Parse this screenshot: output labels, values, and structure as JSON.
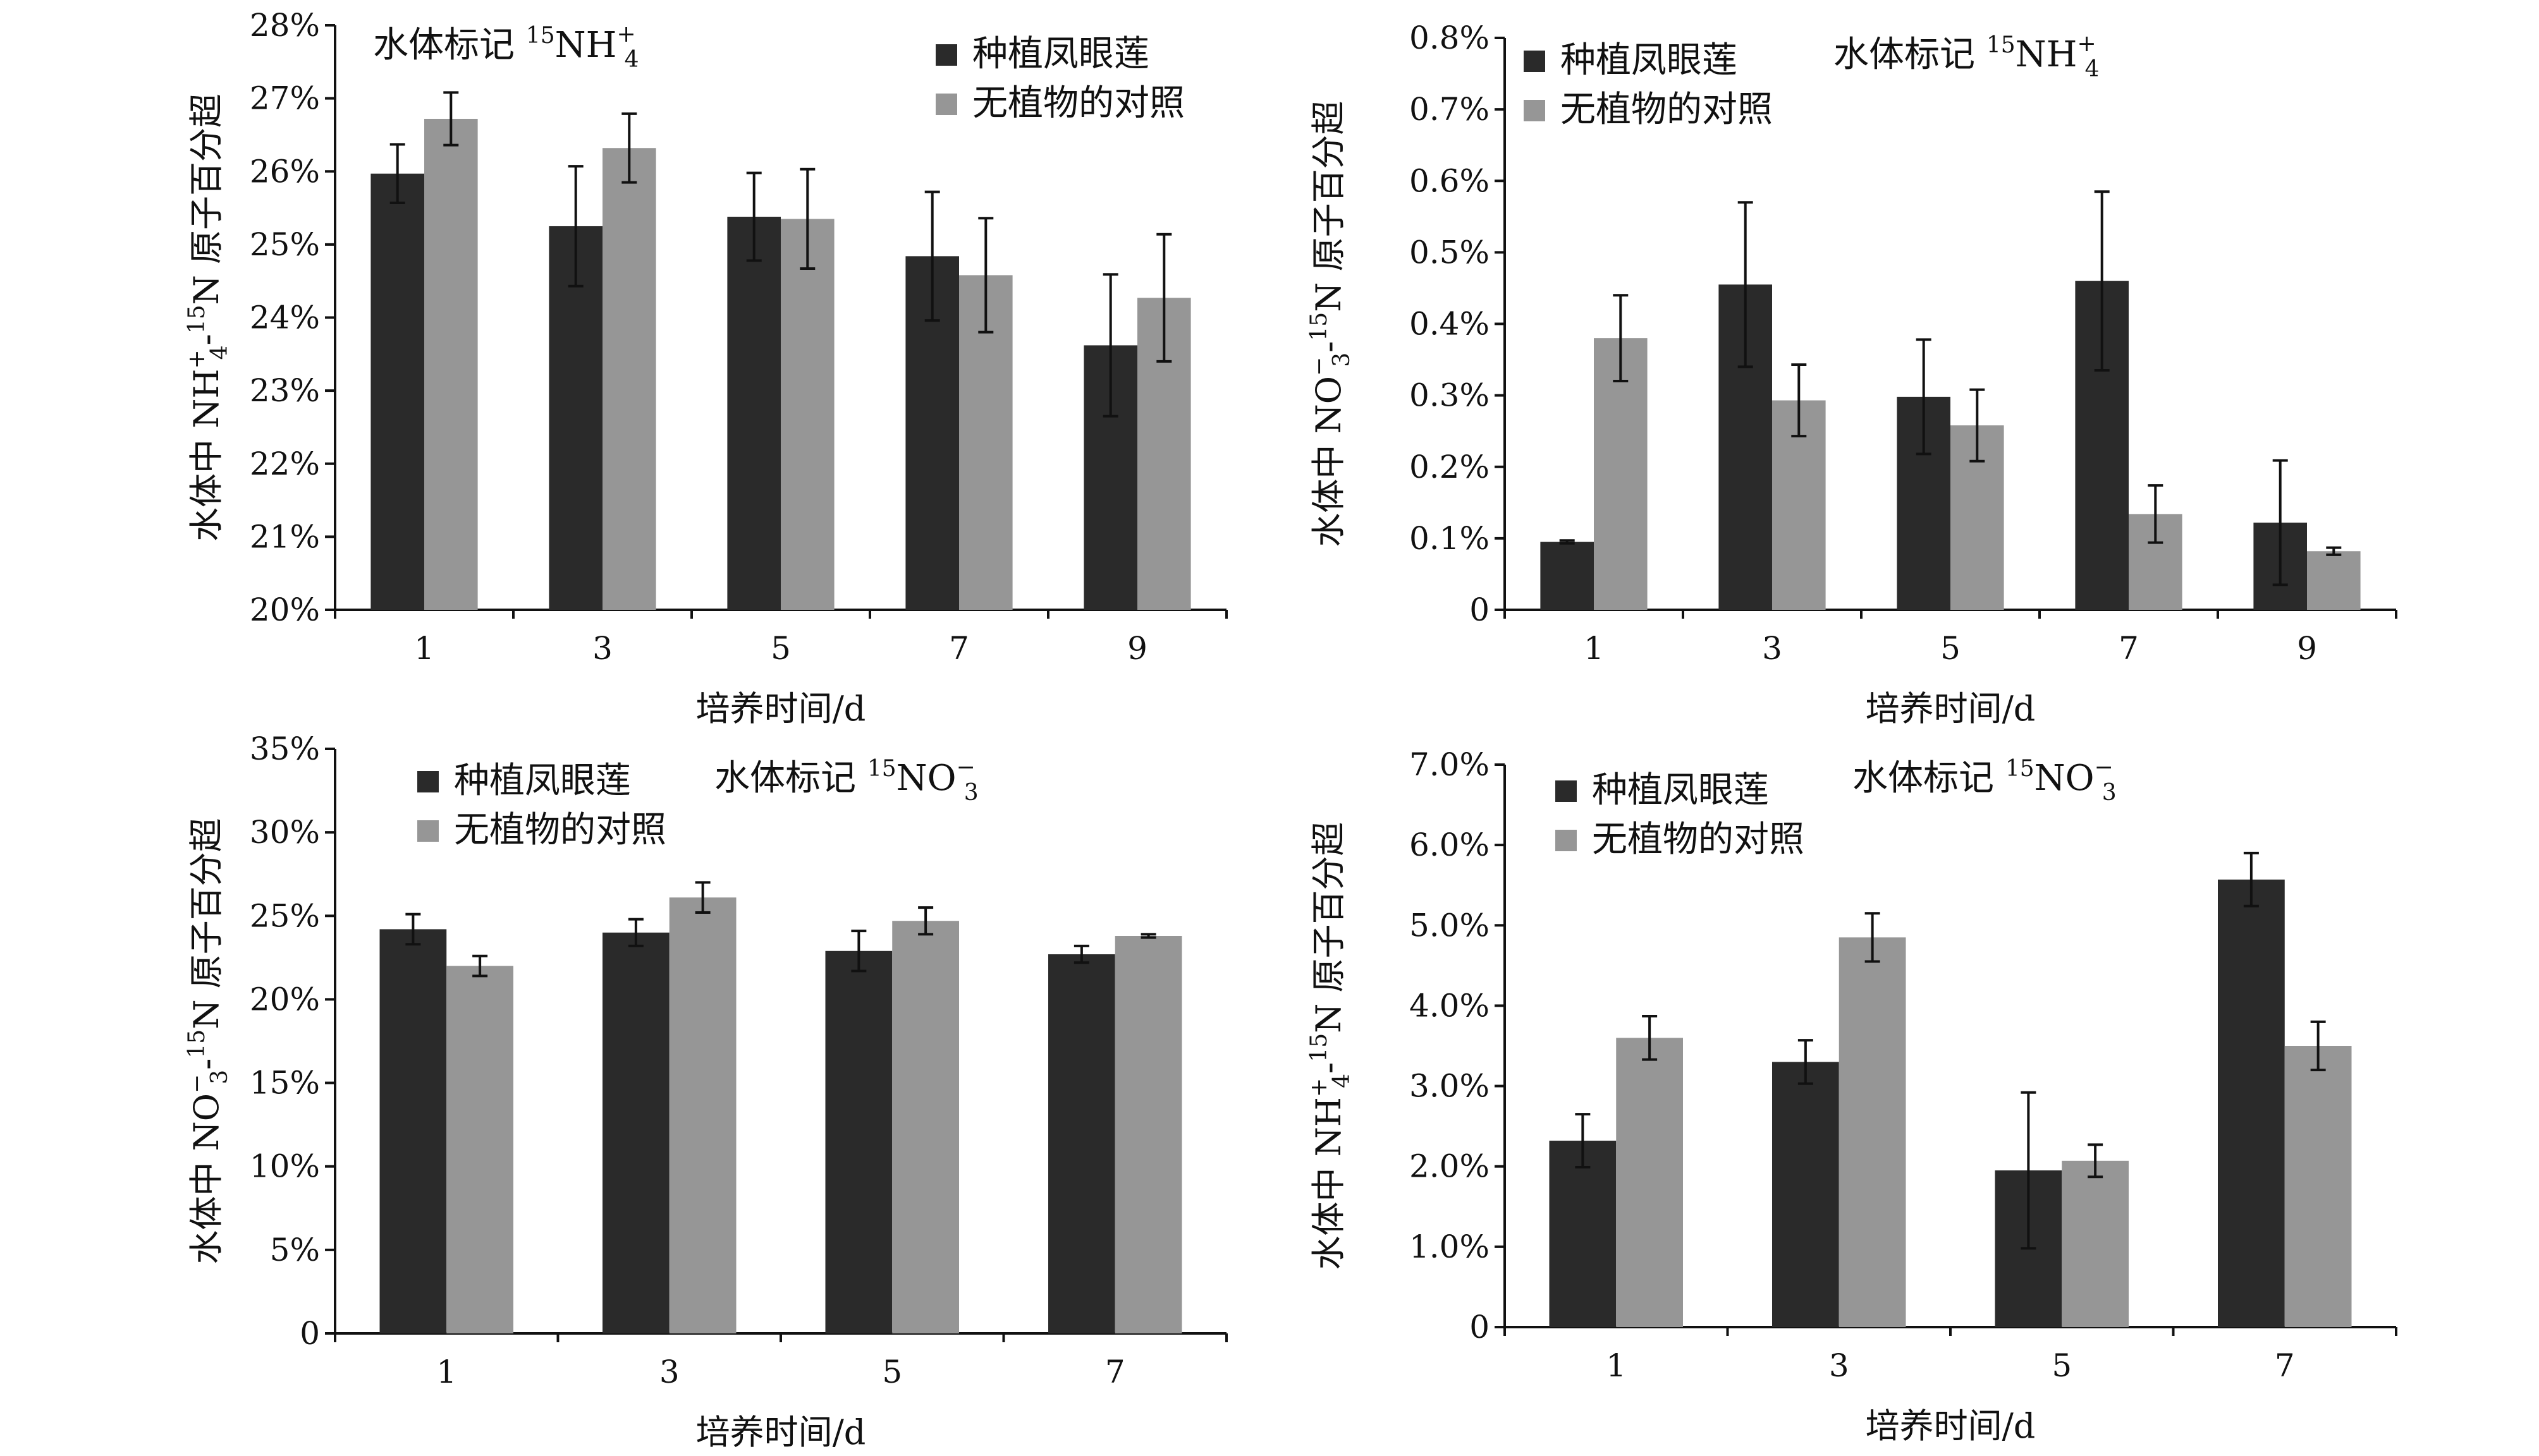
{
  "figure": {
    "series_names": [
      "种植凤眼莲",
      "无植物的对照"
    ],
    "series_colors": [
      "#2a2a2a",
      "#969696"
    ],
    "xlabel": "培养时间/d",
    "superscript_15": "15"
  },
  "chart_data": [
    {
      "type": "bar",
      "title_prefix": "水体标记",
      "title_iso": "NH",
      "title_sub": "4",
      "title_sup": "+",
      "ylabel_prefix": "水体中 NH",
      "ylabel_sub": "4",
      "ylabel_sup": "+",
      "ylabel_suffix": "N 原子百分超",
      "xlabel": "培养时间/d",
      "categories": [
        "1",
        "3",
        "5",
        "7",
        "9"
      ],
      "ylim": [
        20,
        28
      ],
      "yticks": [
        20,
        21,
        22,
        23,
        24,
        25,
        26,
        27,
        28
      ],
      "ytick_labels": [
        "20%",
        "21%",
        "22%",
        "23%",
        "24%",
        "25%",
        "26%",
        "27%",
        "28%"
      ],
      "series": [
        {
          "name": "种植凤眼莲",
          "values": [
            25.97,
            25.25,
            25.38,
            24.84,
            23.62
          ],
          "errors": [
            0.4,
            0.82,
            0.6,
            0.88,
            0.97
          ]
        },
        {
          "name": "无植物的对照",
          "values": [
            26.72,
            26.32,
            25.35,
            24.58,
            24.27
          ],
          "errors": [
            0.36,
            0.47,
            0.68,
            0.78,
            0.87
          ]
        }
      ]
    },
    {
      "type": "bar",
      "title_prefix": "水体标记",
      "title_iso": "NH",
      "title_sub": "4",
      "title_sup": "+",
      "ylabel_prefix": "水体中 NO",
      "ylabel_sub": "3",
      "ylabel_sup": "−",
      "ylabel_suffix": "N 原子百分超",
      "xlabel": "培养时间/d",
      "categories": [
        "1",
        "3",
        "5",
        "7",
        "9"
      ],
      "ylim": [
        0,
        0.8
      ],
      "yticks": [
        0,
        0.1,
        0.2,
        0.3,
        0.4,
        0.5,
        0.6,
        0.7,
        0.8
      ],
      "ytick_labels": [
        "0",
        "0.1%",
        "0.2%",
        "0.3%",
        "0.4%",
        "0.5%",
        "0.6%",
        "0.7%",
        "0.8%"
      ],
      "series": [
        {
          "name": "种植凤眼莲",
          "values": [
            0.095,
            0.455,
            0.298,
            0.46,
            0.122
          ],
          "errors": [
            0.002,
            0.115,
            0.08,
            0.125,
            0.087
          ]
        },
        {
          "name": "无植物的对照",
          "values": [
            0.38,
            0.293,
            0.258,
            0.134,
            0.082
          ],
          "errors": [
            0.06,
            0.05,
            0.05,
            0.04,
            0.005
          ]
        }
      ]
    },
    {
      "type": "bar",
      "title_prefix": "水体标记",
      "title_iso": "NO",
      "title_sub": "3",
      "title_sup": "−",
      "ylabel_prefix": "水体中 NO",
      "ylabel_sub": "3",
      "ylabel_sup": "−",
      "ylabel_suffix": "N 原子百分超",
      "xlabel": "培养时间/d",
      "categories": [
        "1",
        "3",
        "5",
        "7"
      ],
      "ylim": [
        0,
        35
      ],
      "yticks": [
        0,
        5,
        10,
        15,
        20,
        25,
        30,
        35
      ],
      "ytick_labels": [
        "0",
        "5%",
        "10%",
        "15%",
        "20%",
        "25%",
        "30%",
        "35%"
      ],
      "series": [
        {
          "name": "种植凤眼莲",
          "values": [
            24.2,
            24.0,
            22.9,
            22.7
          ],
          "errors": [
            0.9,
            0.8,
            1.2,
            0.5
          ]
        },
        {
          "name": "无植物的对照",
          "values": [
            22.0,
            26.1,
            24.7,
            23.8
          ],
          "errors": [
            0.6,
            0.9,
            0.8,
            0.1
          ]
        }
      ]
    },
    {
      "type": "bar",
      "title_prefix": "水体标记",
      "title_iso": "NO",
      "title_sub": "3",
      "title_sup": "−",
      "ylabel_prefix": "水体中 NH",
      "ylabel_sub": "4",
      "ylabel_sup": "+",
      "ylabel_suffix": "N 原子百分超",
      "xlabel": "培养时间/d",
      "categories": [
        "1",
        "3",
        "5",
        "7"
      ],
      "ylim": [
        0,
        7
      ],
      "yticks": [
        0,
        1,
        2,
        3,
        4,
        5,
        6,
        7
      ],
      "ytick_labels": [
        "0",
        "1.0%",
        "2.0%",
        "3.0%",
        "4.0%",
        "5.0%",
        "6.0%",
        "7.0%"
      ],
      "series": [
        {
          "name": "种植凤眼莲",
          "values": [
            2.32,
            3.3,
            1.95,
            5.57
          ],
          "errors": [
            0.33,
            0.27,
            0.97,
            0.33
          ]
        },
        {
          "name": "无植物的对照",
          "values": [
            3.6,
            4.85,
            2.07,
            3.5
          ],
          "errors": [
            0.27,
            0.3,
            0.2,
            0.3
          ]
        }
      ]
    }
  ]
}
